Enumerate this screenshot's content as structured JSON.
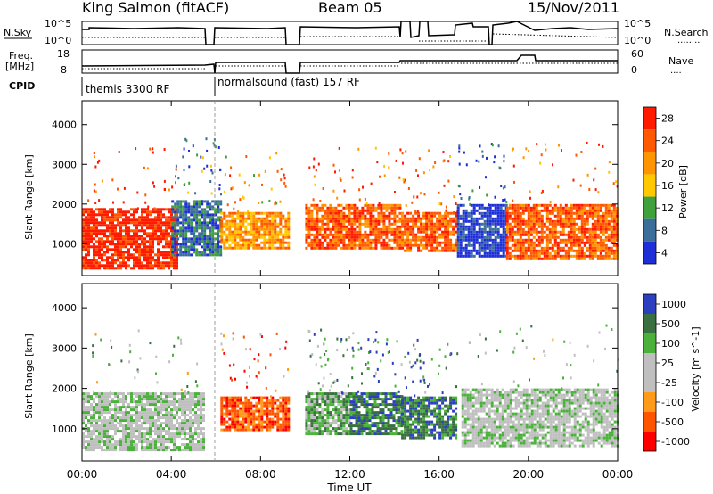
{
  "header": {
    "station": "King Salmon (fitACF)",
    "beam": "Beam 05",
    "date": "15/Nov/2011"
  },
  "noise_panel": {
    "left_label": "N.Sky",
    "right_label": "N.Search",
    "left_ticks": [
      "10^5",
      "10^0"
    ],
    "right_ticks": [
      "10^5",
      "10^0"
    ],
    "right_legend_dots": "........"
  },
  "freq_panel": {
    "left_label_1": "Freq.",
    "left_label_2": "[MHz]",
    "left_ticks": [
      "18",
      "8"
    ],
    "right_ticks": [
      "60",
      "0"
    ],
    "right_label": "Nave",
    "right_legend_dots": "...."
  },
  "cpid": {
    "label": "CPID",
    "segments": [
      {
        "name": "themis 3300 RF",
        "start_hour": 0
      },
      {
        "name": "normalsound (fast) 157 RF",
        "start_hour": 6
      }
    ]
  },
  "chart_data": [
    {
      "type": "heatmap",
      "variable": "Power",
      "ylabel": "Slant Range [km]",
      "yticks": [
        1000,
        2000,
        3000,
        4000
      ],
      "ylim": [
        200,
        4600
      ],
      "xlim_hours": [
        0,
        24
      ],
      "colorbar": {
        "label": "Power [dB]",
        "ticks": [
          "28",
          "24",
          "20",
          "16",
          "12",
          "8",
          "4"
        ],
        "colors": [
          "#ff1a00",
          "#ff5a00",
          "#ff9500",
          "#ffc800",
          "#3fa03c",
          "#3b6e9a",
          "#1f2fd8"
        ]
      },
      "echo_regions": [
        {
          "t": [
            0.0,
            4.2
          ],
          "r": [
            400,
            1900
          ],
          "level": 0
        },
        {
          "t": [
            4.0,
            6.2
          ],
          "r": [
            700,
            2100
          ],
          "level": 5
        },
        {
          "t": [
            6.2,
            9.2
          ],
          "r": [
            900,
            1800
          ],
          "level": 2
        },
        {
          "t": [
            10.0,
            14.3
          ],
          "r": [
            900,
            2000
          ],
          "level": 1
        },
        {
          "t": [
            14.3,
            16.8
          ],
          "r": [
            800,
            1800
          ],
          "level": 1
        },
        {
          "t": [
            16.8,
            19.0
          ],
          "r": [
            700,
            2000
          ],
          "level": 6
        },
        {
          "t": [
            19.0,
            24.0
          ],
          "r": [
            600,
            2000
          ],
          "level": 1
        }
      ]
    },
    {
      "type": "heatmap",
      "variable": "Velocity",
      "ylabel": "Slant Range [km]",
      "yticks": [
        1000,
        2000,
        3000,
        4000
      ],
      "ylim": [
        200,
        4600
      ],
      "xlim_hours": [
        0,
        24
      ],
      "colorbar": {
        "label": "Velocity  [m s^-1]",
        "ticks": [
          "1000",
          "500",
          "100",
          "25",
          "-25",
          "-100",
          "-500",
          "-1000"
        ],
        "colors": [
          "#2b3fbf",
          "#3a7040",
          "#4ab23a",
          "#bfbfbf",
          "#bfbfbf",
          "#ff9a1a",
          "#ff5500",
          "#ff0000"
        ]
      },
      "echo_regions": [
        {
          "t": [
            0.0,
            5.5
          ],
          "r": [
            500,
            1900
          ],
          "level": 3
        },
        {
          "t": [
            6.2,
            9.2
          ],
          "r": [
            1000,
            1800
          ],
          "level": 6
        },
        {
          "t": [
            10.0,
            12.0
          ],
          "r": [
            900,
            1900
          ],
          "level": 2
        },
        {
          "t": [
            12.0,
            14.3
          ],
          "r": [
            900,
            1900
          ],
          "level": 1
        },
        {
          "t": [
            14.3,
            16.8
          ],
          "r": [
            800,
            1800
          ],
          "level": 1
        },
        {
          "t": [
            17.0,
            24.0
          ],
          "r": [
            600,
            2000
          ],
          "level": 3
        }
      ]
    }
  ],
  "x_axis": {
    "tick_labels": [
      "00:00",
      "04:00",
      "08:00",
      "12:00",
      "16:00",
      "20:00",
      "00:00"
    ],
    "label": "Time UT"
  }
}
